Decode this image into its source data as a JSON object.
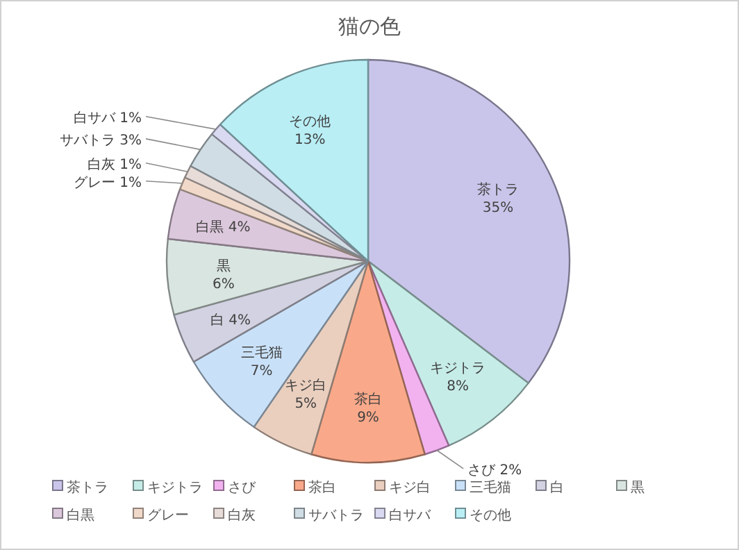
{
  "chart_data": {
    "type": "pie",
    "title": "猫の色",
    "categories": [
      "茶トラ",
      "キジトラ",
      "さび",
      "茶白",
      "キジ白",
      "三毛猫",
      "白",
      "黒",
      "白黒",
      "グレー",
      "白灰",
      "サバトラ",
      "白サバ",
      "その他"
    ],
    "values": [
      35,
      8,
      2,
      9,
      5,
      7,
      4,
      6,
      4,
      1,
      1,
      3,
      1,
      13
    ],
    "colors": [
      "#c9c5ea",
      "#c6ece8",
      "#f2b2f0",
      "#f9a98a",
      "#eacfbf",
      "#c9e1f8",
      "#d2d2e2",
      "#d9e5e1",
      "#dcc8dc",
      "#f1d9c9",
      "#e8dcd8",
      "#d1dde5",
      "#d9d9f1",
      "#b9eef5"
    ],
    "value_labels": [
      "35%",
      "8%",
      "2%",
      "9%",
      "5%",
      "7%",
      "4%",
      "6%",
      "4%",
      "1%",
      "1%",
      "3%",
      "1%",
      "13%"
    ],
    "legend": "bottom"
  }
}
